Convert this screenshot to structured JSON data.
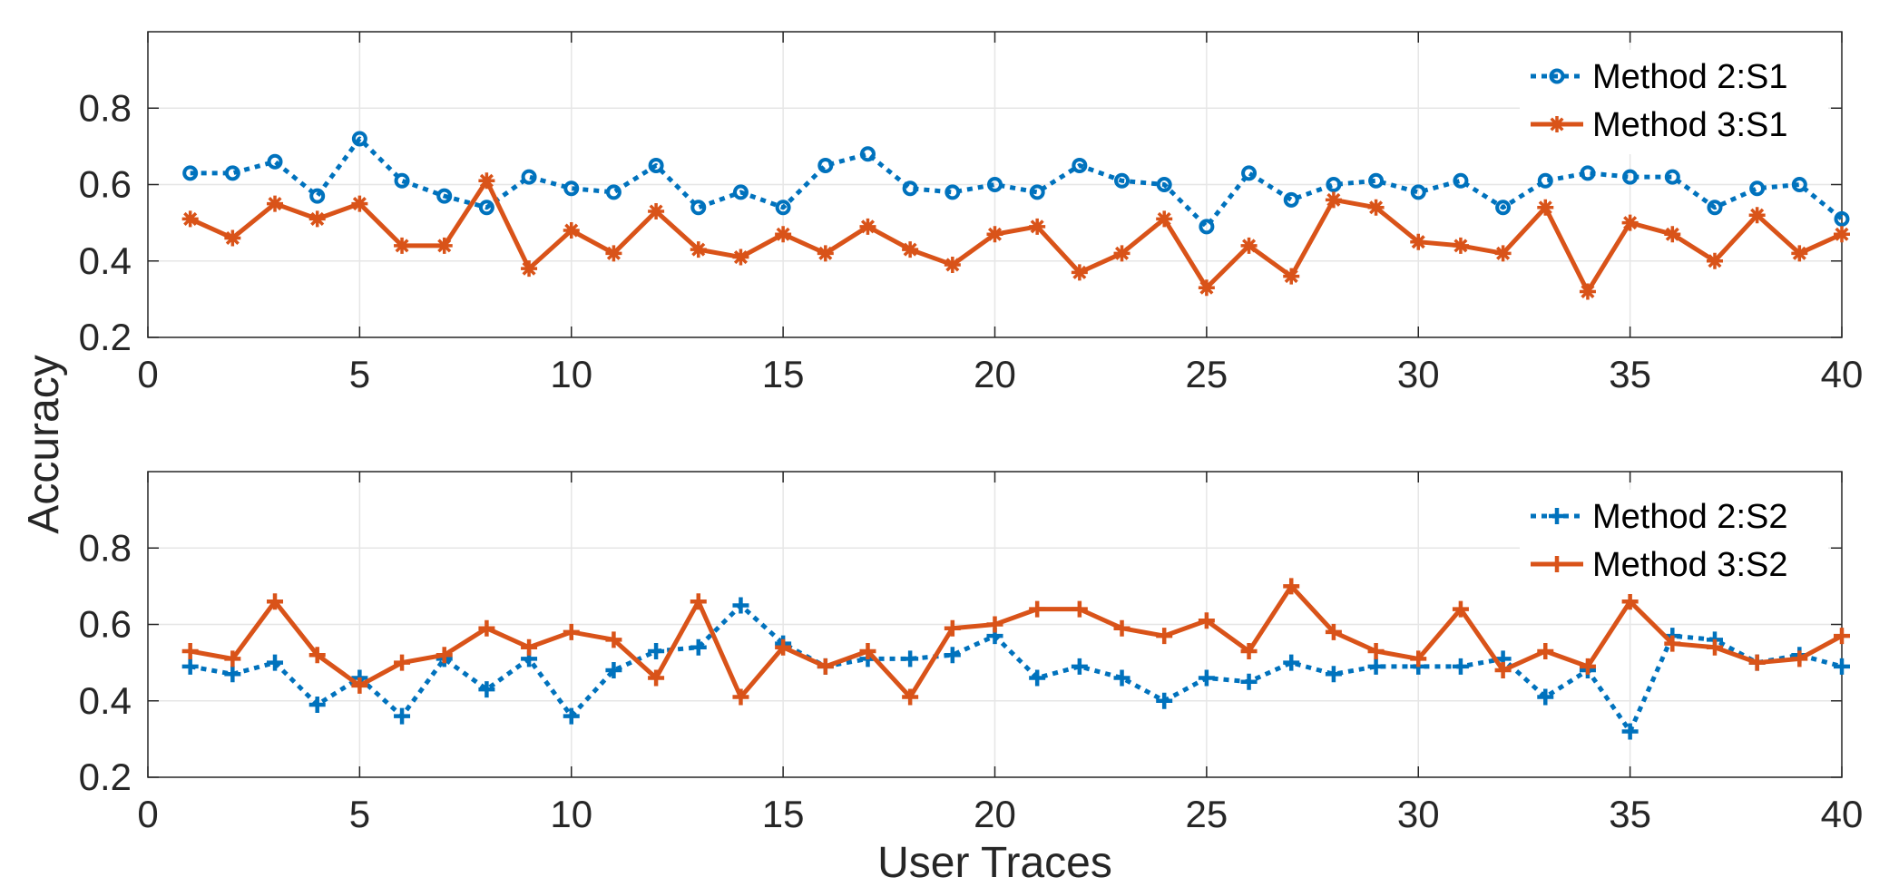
{
  "chart_data": [
    {
      "type": "line",
      "panel": "top",
      "title": "",
      "xlabel": "",
      "ylabel": "",
      "xlim": [
        0,
        40
      ],
      "ylim": [
        0.2,
        1.0
      ],
      "xticks": [
        "0",
        "5",
        "10",
        "15",
        "20",
        "25",
        "30",
        "35",
        "40"
      ],
      "yticks": [
        "0.2",
        "0.4",
        "0.6",
        "0.8"
      ],
      "grid": true,
      "legend_position": "top-right",
      "x": [
        1,
        2,
        3,
        4,
        5,
        6,
        7,
        8,
        9,
        10,
        11,
        12,
        13,
        14,
        15,
        16,
        17,
        18,
        19,
        20,
        21,
        22,
        23,
        24,
        25,
        26,
        27,
        28,
        29,
        30,
        31,
        32,
        33,
        34,
        35,
        36,
        37,
        38,
        39,
        40
      ],
      "series": [
        {
          "name": "Method 2:S1",
          "color": "#0072BD",
          "line_style": "dotted",
          "marker": "circle",
          "values": [
            0.63,
            0.63,
            0.66,
            0.57,
            0.72,
            0.61,
            0.57,
            0.54,
            0.62,
            0.59,
            0.58,
            0.65,
            0.54,
            0.58,
            0.54,
            0.65,
            0.68,
            0.59,
            0.58,
            0.6,
            0.58,
            0.65,
            0.61,
            0.6,
            0.49,
            0.63,
            0.56,
            0.6,
            0.61,
            0.58,
            0.61,
            0.54,
            0.61,
            0.63,
            0.62,
            0.62,
            0.54,
            0.59,
            0.6,
            0.51
          ]
        },
        {
          "name": "Method 3:S1",
          "color": "#D95319",
          "line_style": "solid",
          "marker": "asterisk",
          "values": [
            0.51,
            0.46,
            0.55,
            0.51,
            0.55,
            0.44,
            0.44,
            0.61,
            0.38,
            0.48,
            0.42,
            0.53,
            0.43,
            0.41,
            0.47,
            0.42,
            0.49,
            0.43,
            0.39,
            0.47,
            0.49,
            0.37,
            0.42,
            0.51,
            0.33,
            0.44,
            0.36,
            0.56,
            0.54,
            0.45,
            0.44,
            0.42,
            0.54,
            0.32,
            0.5,
            0.47,
            0.4,
            0.52,
            0.42,
            0.47
          ]
        }
      ]
    },
    {
      "type": "line",
      "panel": "bottom",
      "title": "",
      "xlabel": "User Traces",
      "ylabel": "",
      "xlim": [
        0,
        40
      ],
      "ylim": [
        0.2,
        1.0
      ],
      "xticks": [
        "0",
        "5",
        "10",
        "15",
        "20",
        "25",
        "30",
        "35",
        "40"
      ],
      "yticks": [
        "0.2",
        "0.4",
        "0.6",
        "0.8"
      ],
      "grid": true,
      "legend_position": "top-right",
      "x": [
        1,
        2,
        3,
        4,
        5,
        6,
        7,
        8,
        9,
        10,
        11,
        12,
        13,
        14,
        15,
        16,
        17,
        18,
        19,
        20,
        21,
        22,
        23,
        24,
        25,
        26,
        27,
        28,
        29,
        30,
        31,
        32,
        33,
        34,
        35,
        36,
        37,
        38,
        39,
        40
      ],
      "series": [
        {
          "name": "Method 2:S2",
          "color": "#0072BD",
          "line_style": "dotted",
          "marker": "plus",
          "values": [
            0.49,
            0.47,
            0.5,
            0.39,
            0.46,
            0.36,
            0.51,
            0.43,
            0.51,
            0.36,
            0.48,
            0.53,
            0.54,
            0.65,
            0.55,
            0.49,
            0.51,
            0.51,
            0.52,
            0.57,
            0.46,
            0.49,
            0.46,
            0.4,
            0.46,
            0.45,
            0.5,
            0.47,
            0.49,
            0.49,
            0.49,
            0.51,
            0.41,
            0.48,
            0.32,
            0.57,
            0.56,
            0.5,
            0.52,
            0.49
          ]
        },
        {
          "name": "Method 3:S2",
          "color": "#D95319",
          "line_style": "solid",
          "marker": "plus",
          "values": [
            0.53,
            0.51,
            0.66,
            0.52,
            0.44,
            0.5,
            0.52,
            0.59,
            0.54,
            0.58,
            0.56,
            0.46,
            0.66,
            0.41,
            0.54,
            0.49,
            0.53,
            0.41,
            0.59,
            0.6,
            0.64,
            0.64,
            0.59,
            0.57,
            0.61,
            0.53,
            0.7,
            0.58,
            0.53,
            0.51,
            0.64,
            0.48,
            0.53,
            0.49,
            0.66,
            0.55,
            0.54,
            0.5,
            0.51,
            0.57
          ]
        }
      ]
    }
  ],
  "shared_ylabel": "Accuracy"
}
